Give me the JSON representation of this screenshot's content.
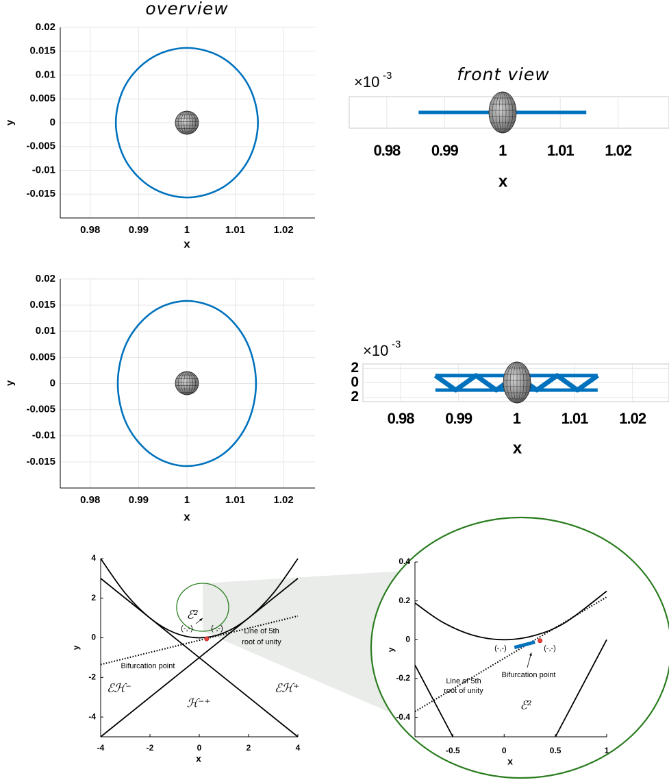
{
  "chart_data": [
    {
      "type": "line",
      "title": "overview",
      "xlabel": "x",
      "ylabel": "y",
      "xlim": [
        0.9738,
        1.0265
      ],
      "ylim": [
        -0.02,
        0.02
      ],
      "xticks": [
        0.98,
        0.99,
        1,
        1.01,
        1.02
      ],
      "yticks": [
        0.02,
        0.015,
        0.01,
        0.005,
        0,
        -0.005,
        -0.01,
        -0.015
      ],
      "grid": true,
      "series": [
        {
          "color": "#0072bd",
          "style": "closed-curve",
          "x": [
            1.0147,
            1.0127,
            1.0074,
            1,
            0.9927,
            0.9873,
            0.9853,
            0.9873,
            0.9927,
            1,
            1.0074,
            1.0127
          ],
          "values": [
            0,
            0.0079,
            0.0136,
            0.0157,
            0.0136,
            0.0079,
            0,
            -0.0079,
            -0.0136,
            -0.0157,
            -0.0136,
            -0.0079
          ]
        }
      ]
    },
    {
      "type": "line",
      "title": "front view",
      "xlabel": "x",
      "y_multiplier": "×10",
      "y_multiplier_exponent": "-3",
      "xlim": [
        0.9735,
        1.0288
      ],
      "ylim": [
        -1,
        1
      ],
      "xticks": [
        0.98,
        0.99,
        1,
        1.01,
        1.02
      ],
      "grid": true,
      "series": [
        {
          "color": "#0072bd",
          "style": "thick",
          "x": [
            0.9855,
            1.0145
          ],
          "values": [
            0,
            0
          ]
        }
      ]
    },
    {
      "type": "line",
      "xlabel": "x",
      "ylabel": "y",
      "xlim": [
        0.9738,
        1.0265
      ],
      "ylim": [
        -0.02,
        0.02
      ],
      "xticks": [
        0.98,
        0.99,
        1,
        1.01,
        1.02
      ],
      "yticks": [
        0.02,
        0.015,
        0.01,
        0.005,
        0,
        -0.005,
        -0.01,
        -0.015
      ],
      "grid": true,
      "series": [
        {
          "color": "#0072bd",
          "style": "closed-curve",
          "x": [
            1.0143,
            1.0124,
            1.0072,
            1,
            0.9929,
            0.9876,
            0.9857,
            0.9876,
            0.9929,
            1,
            1.0072,
            1.0124
          ],
          "values": [
            0,
            0.0079,
            0.0137,
            0.0158,
            0.0137,
            0.0079,
            0,
            -0.0079,
            -0.0137,
            -0.0158,
            -0.0137,
            -0.0079
          ]
        }
      ]
    },
    {
      "type": "line",
      "xlabel": "x",
      "y_multiplier": "×10",
      "y_multiplier_exponent": "-3",
      "xlim": [
        0.9735,
        1.0263
      ],
      "ylim": [
        -2.6,
        2.6
      ],
      "xticks": [
        0.98,
        0.99,
        1,
        1.01,
        1.02
      ],
      "yticks": [
        {
          "value": 2,
          "label": "2"
        },
        0,
        {
          "value": -2,
          "label": "2"
        }
      ],
      "grid": true,
      "series": [
        {
          "color": "#0072bd",
          "style": "band",
          "x": [
            0.986,
            0.9895,
            0.993,
            0.9965,
            1,
            1.0035,
            1.007,
            1.0105,
            1.014
          ],
          "values": [
            1,
            -1,
            1,
            -1,
            1,
            -1,
            1,
            -1,
            1
          ]
        }
      ]
    },
    {
      "type": "line",
      "xlabel": "x",
      "ylabel": "y",
      "xlim": [
        -4,
        4
      ],
      "ylim": [
        -5,
        4
      ],
      "xticks": [
        -4,
        -2,
        0,
        2,
        4
      ],
      "yticks": [
        4,
        2,
        0,
        -2,
        -4
      ],
      "grid": false,
      "series": [
        {
          "color": "#000000",
          "style": "curve",
          "x": [
            -4,
            -3,
            -2,
            -1,
            0,
            1,
            2,
            3,
            4
          ],
          "values": [
            4,
            2.25,
            1,
            0.25,
            0,
            0.25,
            1,
            2.25,
            4
          ]
        },
        {
          "color": "#000000",
          "style": "line",
          "x": [
            -4,
            4
          ],
          "values": [
            3,
            -5
          ]
        },
        {
          "color": "#000000",
          "style": "line",
          "x": [
            -4,
            4
          ],
          "values": [
            -5,
            3
          ]
        },
        {
          "color": "#000000",
          "style": "dotted",
          "x": [
            -4,
            4
          ],
          "values": [
            -1.35,
            1.1
          ]
        },
        {
          "color": "#e8433a",
          "style": "point",
          "x": [
            0.3
          ],
          "values": [
            -0.05
          ]
        }
      ],
      "annotations": [
        "(-,-)",
        "(-,-)",
        "Line of 5th",
        "root of unity",
        "Bifurcation point",
        "ℰℋ⁻",
        "ℋ⁻⁺",
        "ℰℋ⁺",
        "ℰ²"
      ]
    },
    {
      "type": "line",
      "xlabel": "x",
      "ylabel": "y",
      "xlim": [
        -0.87,
        1
      ],
      "ylim": [
        -0.5,
        0.4
      ],
      "xticks": [
        -0.5,
        0,
        0.5,
        1
      ],
      "yticks": [
        0.4,
        0.2,
        0,
        -0.2,
        -0.4
      ],
      "grid": false,
      "series": [
        {
          "color": "#000000",
          "style": "curve",
          "x": [
            -0.87,
            -0.6,
            -0.3,
            0,
            0.3,
            0.6,
            1
          ],
          "values": [
            0.189,
            0.09,
            0.0225,
            0,
            0.0225,
            0.09,
            0.25
          ]
        },
        {
          "color": "#000000",
          "style": "line",
          "x": [
            -0.87,
            -0.5
          ],
          "values": [
            -0.13,
            -0.5
          ]
        },
        {
          "color": "#000000",
          "style": "line",
          "x": [
            0.5,
            1
          ],
          "values": [
            -0.5,
            0
          ]
        },
        {
          "color": "#000000",
          "style": "dotted",
          "x": [
            -0.87,
            1
          ],
          "values": [
            -0.37,
            0.22
          ]
        },
        {
          "color": "#0072bd",
          "style": "thick",
          "x": [
            0.1,
            0.3
          ],
          "values": [
            -0.04,
            -0.012
          ]
        },
        {
          "color": "#e8433a",
          "style": "point",
          "x": [
            0.35
          ],
          "values": [
            -0.005
          ]
        }
      ],
      "annotations": [
        "(-,-)",
        "(-,-)",
        "Bifurcation point",
        "Line of 5th",
        "root of unity",
        "ℰ²"
      ]
    }
  ]
}
